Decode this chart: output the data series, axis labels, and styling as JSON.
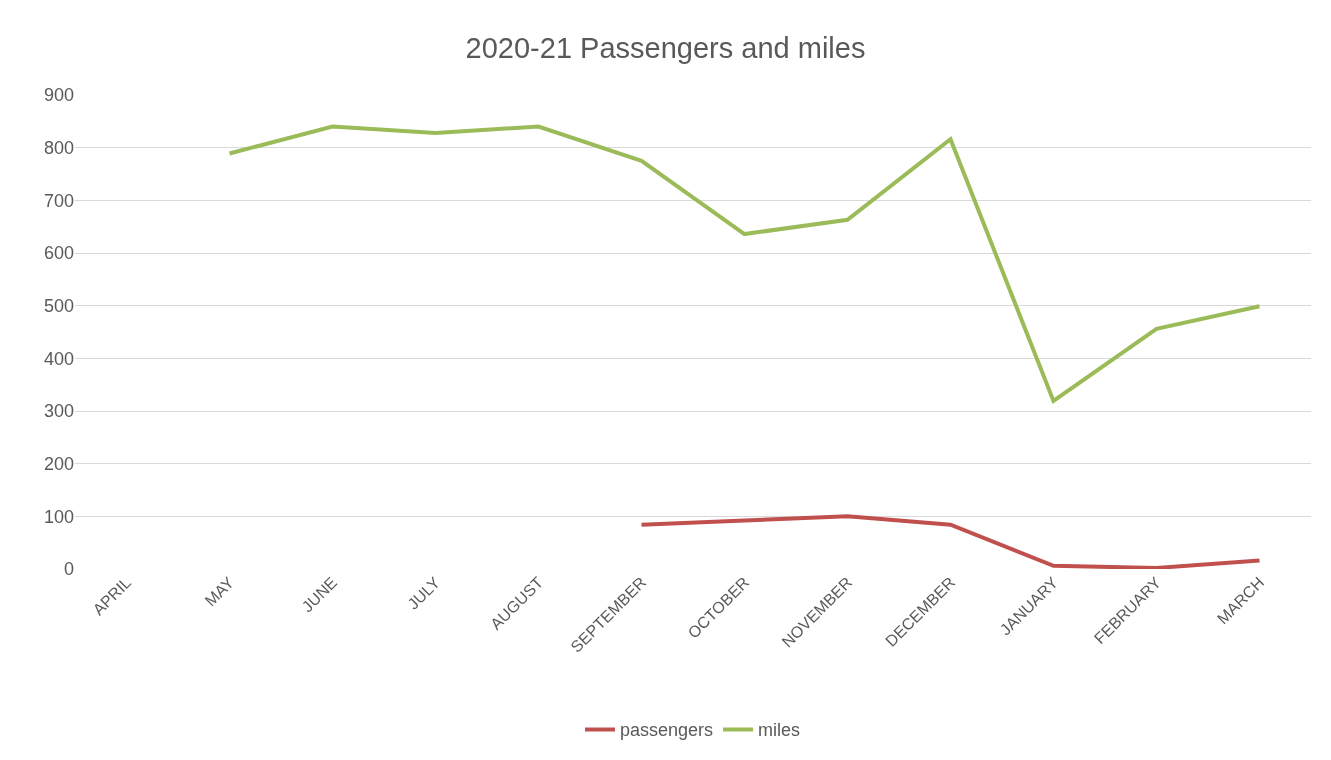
{
  "chart_data": {
    "type": "line",
    "title": "2020-21 Passengers and miles",
    "categories": [
      "APRIL",
      "MAY",
      "JUNE",
      "JULY",
      "AUGUST",
      "SEPTEMBER",
      "OCTOBER",
      "NOVEMBER",
      "DECEMBER",
      "JANUARY",
      "FEBRUARY",
      "MARCH"
    ],
    "series": [
      {
        "name": "passengers",
        "color": "#c0504d",
        "values": [
          null,
          null,
          null,
          null,
          null,
          84,
          92,
          100,
          84,
          6,
          2,
          16
        ]
      },
      {
        "name": "miles",
        "color": "#9bbb59",
        "values": [
          null,
          789,
          840,
          828,
          840,
          775,
          636,
          663,
          816,
          319,
          456,
          499
        ]
      }
    ],
    "ylim": [
      0,
      900
    ],
    "yticks": [
      0,
      100,
      200,
      300,
      400,
      500,
      600,
      700,
      800,
      900
    ],
    "grid": "y",
    "legend": "bottom",
    "marker": "none",
    "line_style": "solid"
  }
}
